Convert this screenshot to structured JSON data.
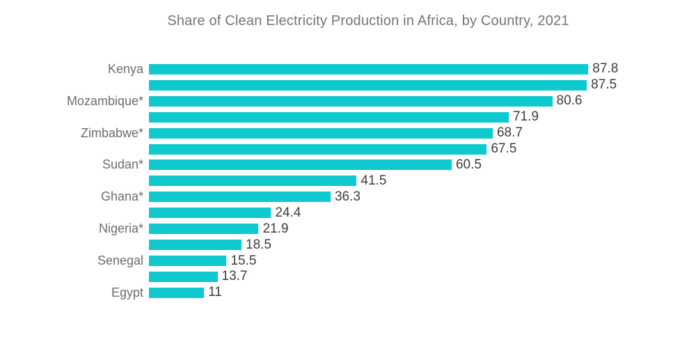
{
  "title": "Share of Clean Electricity Production in Africa, by Country, 2021",
  "colors": {
    "background": "#ffffff",
    "bar": "#0FC9CF",
    "title_text": "#757575",
    "category_text": "#6d6d6d",
    "value_text": "#3d3d3d"
  },
  "chart_data": {
    "type": "bar",
    "orientation": "horizontal",
    "title": "Share of Clean Electricity Production in Africa, by Country, 2021",
    "categories": [
      "Kenya",
      "",
      "Mozambique*",
      "",
      "Zimbabwe*",
      "",
      "Sudan*",
      "",
      "Ghana*",
      "",
      "Nigeria*",
      "",
      "Senegal",
      "",
      "Egypt"
    ],
    "values": [
      87.8,
      87.5,
      80.6,
      71.9,
      68.7,
      67.5,
      60.5,
      41.5,
      36.3,
      24.4,
      21.9,
      18.5,
      15.5,
      13.7,
      11
    ],
    "value_labels": [
      "87.8",
      "87.5",
      "80.6",
      "71.9",
      "68.7",
      "67.5",
      "60.5",
      "41.5",
      "36.3",
      "24.4",
      "21.9",
      "18.5",
      "15.5",
      "13.7",
      "11"
    ],
    "xlim": [
      0,
      100
    ],
    "grid": false,
    "legend": false,
    "data_labels_position": "outside-end",
    "axis_labels_shown_every_other_bar": true
  }
}
